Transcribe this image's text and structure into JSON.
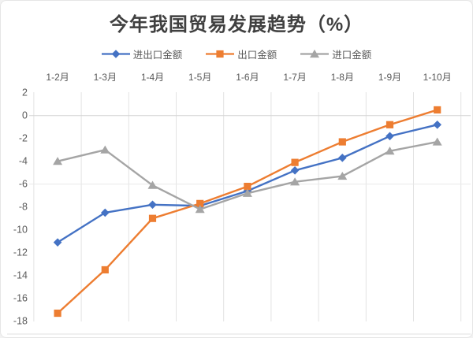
{
  "chart": {
    "title": "今年我国贸易发展趋势（%）"
  },
  "chart_data": {
    "type": "line",
    "title": "今年我国贸易发展趋势（%）",
    "categories": [
      "1-2月",
      "1-3月",
      "1-4月",
      "1-5月",
      "1-6月",
      "1-7月",
      "1-8月",
      "1-9月",
      "1-10月"
    ],
    "series": [
      {
        "name": "进出口金额",
        "marker": "diamond",
        "color": "#4472C4",
        "values": [
          -11.1,
          -8.5,
          -7.8,
          -7.9,
          -6.6,
          -4.8,
          -3.7,
          -1.8,
          -0.8
        ]
      },
      {
        "name": "出口金额",
        "marker": "square",
        "color": "#ED7D31",
        "values": [
          -17.3,
          -13.5,
          -9.0,
          -7.7,
          -6.2,
          -4.1,
          -2.3,
          -0.8,
          0.5
        ]
      },
      {
        "name": "进口金额",
        "marker": "triangle",
        "color": "#A5A5A5",
        "values": [
          -4.0,
          -3.0,
          -6.1,
          -8.2,
          -6.8,
          -5.8,
          -5.3,
          -3.1,
          -2.3
        ]
      }
    ],
    "y_ticks": [
      2,
      0,
      -2,
      -4,
      -6,
      -8,
      -10,
      -12,
      -14,
      -16,
      -18
    ],
    "ylim": [
      -18,
      2
    ],
    "xlabel": "",
    "ylabel": "",
    "x_axis_position": "top",
    "legend_position": "top",
    "grid": {
      "vertical": true,
      "horizontal_lines_at": [
        0,
        -6
      ]
    },
    "axis_text_color": "#595959",
    "gridline_color": "#e3e3e3",
    "zero_line_color": "#d4d4d4"
  }
}
